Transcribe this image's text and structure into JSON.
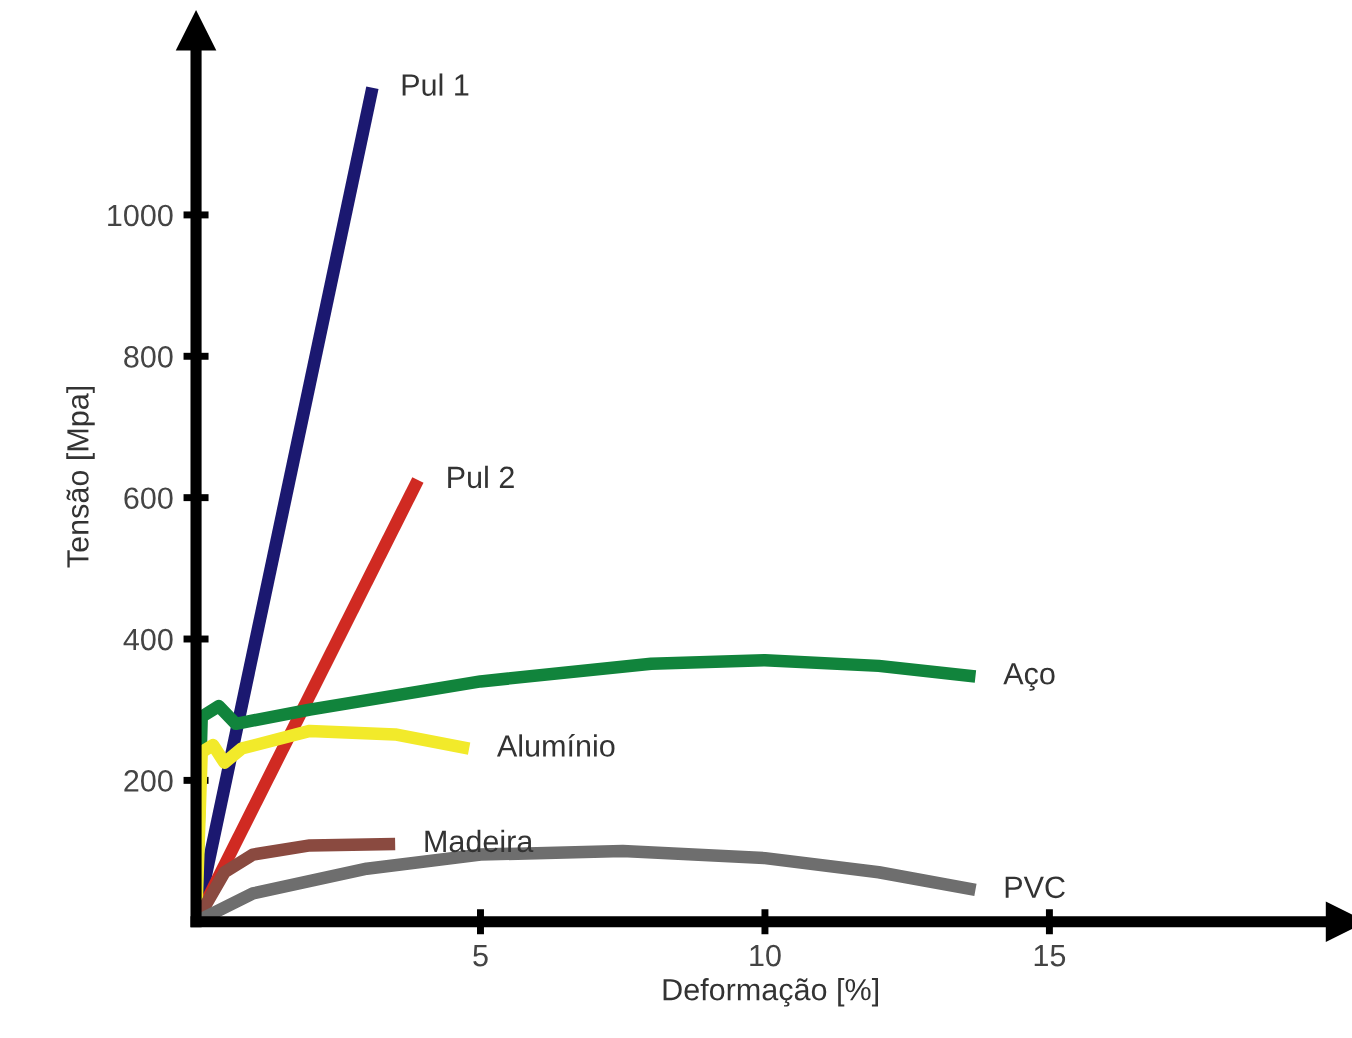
{
  "chart_data": {
    "type": "line",
    "xlabel": "Deformação [%]",
    "ylabel": "Tensão [Mpa]",
    "xlim": [
      0,
      20.2
    ],
    "ylim": [
      0,
      1260
    ],
    "xticks": [
      5,
      10,
      15
    ],
    "yticks": [
      200,
      400,
      600,
      800,
      1000
    ],
    "grid": false,
    "legend": false,
    "marker": "none",
    "line_style": "solid",
    "series": [
      {
        "name": "Pul 1",
        "color": "#1b1870",
        "x": [
          0,
          3.1
        ],
        "values": [
          0,
          1180
        ]
      },
      {
        "name": "Pul 2",
        "color": "#d02a22",
        "x": [
          0,
          3.9
        ],
        "values": [
          0,
          625
        ]
      },
      {
        "name": "Aço",
        "color": "#11843c",
        "x": [
          0,
          0.1,
          0.4,
          0.7,
          2,
          5,
          8,
          10,
          12,
          13.7
        ],
        "values": [
          0,
          290,
          305,
          280,
          300,
          340,
          365,
          370,
          362,
          347
        ]
      },
      {
        "name": "Alumínio",
        "color": "#f2ea2a",
        "x": [
          0,
          0.1,
          0.3,
          0.5,
          0.8,
          2,
          3.5,
          4.8
        ],
        "values": [
          0,
          240,
          250,
          225,
          245,
          270,
          265,
          245
        ]
      },
      {
        "name": "Madeira",
        "color": "#8a4a40",
        "x": [
          0,
          0.5,
          1,
          2,
          3.5
        ],
        "values": [
          0,
          70,
          95,
          108,
          110
        ]
      },
      {
        "name": "PVC",
        "color": "#6e6e6e",
        "x": [
          0,
          1,
          3,
          5,
          7.5,
          10,
          12,
          13.7
        ],
        "values": [
          0,
          40,
          75,
          95,
          100,
          90,
          70,
          45
        ]
      }
    ]
  }
}
